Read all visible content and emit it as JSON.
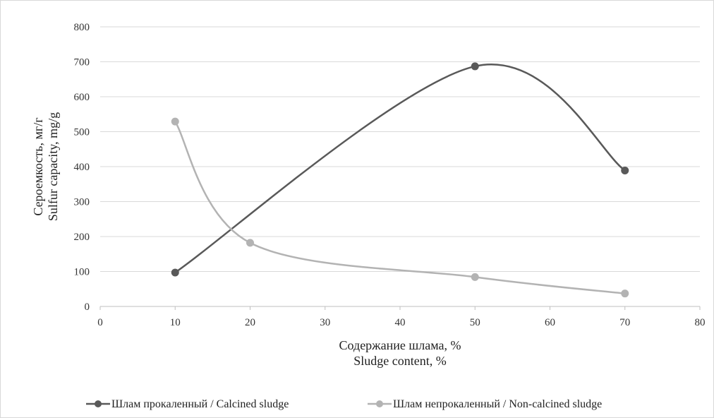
{
  "chart_data": {
    "type": "line",
    "smooth": true,
    "xlim": [
      0,
      80
    ],
    "ylim": [
      0,
      800
    ],
    "x_ticks": [
      "0",
      "10",
      "20",
      "30",
      "40",
      "50",
      "60",
      "70",
      "80"
    ],
    "y_ticks": [
      "0",
      "100",
      "200",
      "300",
      "400",
      "500",
      "600",
      "700",
      "800"
    ],
    "grid": "horizontal",
    "legend_position": "bottom",
    "xlabel": [
      "Содержание шлама, %",
      "Sludge content, %"
    ],
    "ylabel": [
      "Сероемкость, мг/г",
      "Sulfur capacity, mg/g"
    ],
    "series": [
      {
        "name": "Шлам прокаленный / Calcined sludge",
        "color": "#595959",
        "points": [
          {
            "x": 10,
            "y": 97
          },
          {
            "x": 50,
            "y": 687
          },
          {
            "x": 70,
            "y": 389
          }
        ]
      },
      {
        "name": "Шлам непрокаленный / Non-calcined sludge",
        "color": "#b3b3b3",
        "points": [
          {
            "x": 10,
            "y": 529
          },
          {
            "x": 20,
            "y": 182
          },
          {
            "x": 50,
            "y": 84
          },
          {
            "x": 70,
            "y": 37
          }
        ]
      }
    ]
  }
}
